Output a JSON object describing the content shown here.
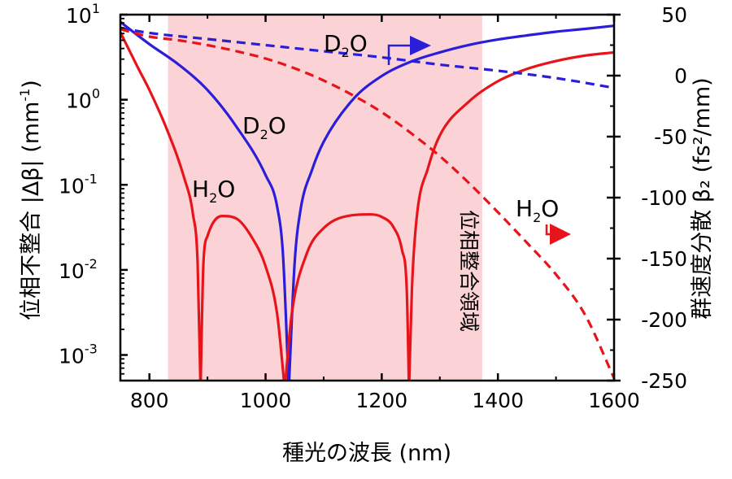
{
  "chart_data": {
    "type": "line",
    "title": "",
    "xlabel": "種光の波長 (nm)",
    "xlim": [
      750,
      1600
    ],
    "x_ticks": [
      {
        "value": 800,
        "label": "800"
      },
      {
        "value": 1000,
        "label": "1000"
      },
      {
        "value": 1200,
        "label": "1200"
      },
      {
        "value": 1400,
        "label": "1400"
      },
      {
        "value": 1600,
        "label": "1600"
      }
    ],
    "y_left": {
      "label_main": "位相不整合 |Δβ| (mm",
      "label_sup": "-1",
      "label_end": ")",
      "scale": "log",
      "lim": [
        0.0005,
        10
      ],
      "ticks": [
        {
          "value": 10,
          "base": "10",
          "exp": "1"
        },
        {
          "value": 1,
          "base": "10",
          "exp": "0"
        },
        {
          "value": 0.1,
          "base": "10",
          "exp": "-1"
        },
        {
          "value": 0.01,
          "base": "10",
          "exp": "-2"
        },
        {
          "value": 0.001,
          "base": "10",
          "exp": "-3"
        }
      ]
    },
    "y_right": {
      "label": "群速度分散 β₂ (fs²/mm)",
      "scale": "linear",
      "lim": [
        -250,
        50
      ],
      "ticks": [
        {
          "value": 50,
          "label": "50"
        },
        {
          "value": 0,
          "label": "0"
        },
        {
          "value": -50,
          "label": "-50"
        },
        {
          "value": -100,
          "label": "-100"
        },
        {
          "value": -150,
          "label": "-150"
        },
        {
          "value": -200,
          "label": "-200"
        },
        {
          "value": -250,
          "label": "-250"
        }
      ]
    },
    "phase_matching_region": {
      "x_range": [
        832,
        1373
      ],
      "label": "位相整合領域",
      "color": "#fbd3d6",
      "label_color": "#e8141b"
    },
    "series": [
      {
        "name": "D₂O |Δβ|",
        "axis": "left",
        "style": "solid",
        "color": "#2a1ed8",
        "zeros": [
          1040
        ],
        "points": [
          [
            750,
            8.2
          ],
          [
            800,
            4.5
          ],
          [
            850,
            2.6
          ],
          [
            900,
            1.3
          ],
          [
            950,
            0.48
          ],
          [
            1000,
            0.13
          ],
          [
            1020,
            0.055
          ],
          [
            1030,
            0.015
          ],
          [
            1040,
            0.0004
          ],
          [
            1050,
            0.012
          ],
          [
            1060,
            0.05
          ],
          [
            1080,
            0.15
          ],
          [
            1100,
            0.32
          ],
          [
            1150,
            1.0
          ],
          [
            1200,
            1.9
          ],
          [
            1250,
            2.8
          ],
          [
            1300,
            3.6
          ],
          [
            1350,
            4.4
          ],
          [
            1400,
            5.1
          ],
          [
            1450,
            5.7
          ],
          [
            1500,
            6.3
          ],
          [
            1550,
            6.8
          ],
          [
            1600,
            7.4
          ]
        ]
      },
      {
        "name": "H₂O |Δβ|",
        "axis": "left",
        "style": "solid",
        "color": "#e8141b",
        "zeros": [
          888,
          1033,
          1247
        ],
        "points": [
          [
            750,
            6.2
          ],
          [
            780,
            2.4
          ],
          [
            800,
            1.3
          ],
          [
            830,
            0.45
          ],
          [
            860,
            0.12
          ],
          [
            875,
            0.045
          ],
          [
            883,
            0.012
          ],
          [
            888,
            0.0004
          ],
          [
            893,
            0.012
          ],
          [
            900,
            0.025
          ],
          [
            925,
            0.043
          ],
          [
            950,
            0.04
          ],
          [
            975,
            0.025
          ],
          [
            1000,
            0.011
          ],
          [
            1020,
            0.003
          ],
          [
            1033,
            0.0004
          ],
          [
            1045,
            0.003
          ],
          [
            1070,
            0.015
          ],
          [
            1100,
            0.031
          ],
          [
            1150,
            0.044
          ],
          [
            1180,
            0.045
          ],
          [
            1200,
            0.042
          ],
          [
            1220,
            0.032
          ],
          [
            1235,
            0.017
          ],
          [
            1243,
            0.006
          ],
          [
            1247,
            0.0004
          ],
          [
            1252,
            0.006
          ],
          [
            1260,
            0.04
          ],
          [
            1280,
            0.16
          ],
          [
            1300,
            0.38
          ],
          [
            1350,
            0.95
          ],
          [
            1400,
            1.65
          ],
          [
            1450,
            2.3
          ],
          [
            1500,
            2.85
          ],
          [
            1550,
            3.3
          ],
          [
            1600,
            3.6
          ]
        ]
      },
      {
        "name": "D₂O β₂",
        "axis": "right",
        "style": "dashed",
        "color": "#2a1ed8",
        "points": [
          [
            750,
            39
          ],
          [
            800,
            35
          ],
          [
            900,
            30
          ],
          [
            1000,
            25
          ],
          [
            1100,
            20
          ],
          [
            1200,
            15
          ],
          [
            1300,
            9
          ],
          [
            1400,
            4
          ],
          [
            1500,
            -2
          ],
          [
            1600,
            -10
          ]
        ]
      },
      {
        "name": "H₂O β₂",
        "axis": "right",
        "style": "dashed",
        "color": "#e8141b",
        "points": [
          [
            750,
            38
          ],
          [
            800,
            32
          ],
          [
            850,
            29
          ],
          [
            900,
            25
          ],
          [
            950,
            20
          ],
          [
            1000,
            14
          ],
          [
            1050,
            6
          ],
          [
            1100,
            -4
          ],
          [
            1150,
            -16
          ],
          [
            1200,
            -30
          ],
          [
            1250,
            -47
          ],
          [
            1300,
            -66
          ],
          [
            1350,
            -88
          ],
          [
            1400,
            -112
          ],
          [
            1450,
            -137
          ],
          [
            1500,
            -163
          ],
          [
            1550,
            -196
          ],
          [
            1600,
            -248
          ]
        ]
      }
    ],
    "annotations": [
      {
        "text_main": "D",
        "text_sub": "2",
        "text_end": "O",
        "color": "#2a1ed8",
        "target": "curve label D2O (solid)"
      },
      {
        "text_main": "H",
        "text_sub": "2",
        "text_end": "O",
        "color": "#e8141b",
        "target": "curve label H2O (solid)"
      },
      {
        "text_main": "D",
        "text_sub": "2",
        "text_end": "O",
        "color": "#2a1ed8",
        "arrow": "right",
        "target": "dashed D2O -> right axis"
      },
      {
        "text_main": "H",
        "text_sub": "2",
        "text_end": "O",
        "color": "#e8141b",
        "arrow": "right",
        "target": "dashed H2O -> right axis"
      }
    ]
  }
}
